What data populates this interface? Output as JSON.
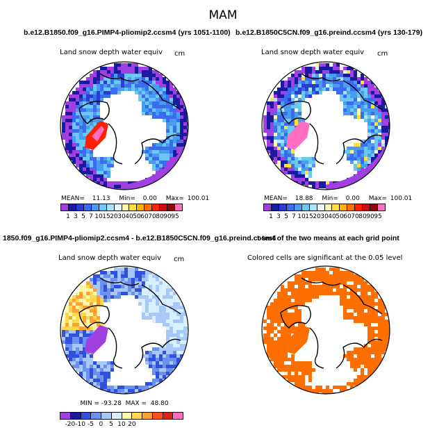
{
  "figure": {
    "title": "MAM"
  },
  "panels": [
    {
      "title": "b.e12.B1850.f09_g16.PIMP4-pliomip2.ccsm4 (yrs 1051-1100)",
      "variable": "Land snow depth water equiv",
      "units": "cm",
      "stats": {
        "mean_label": "MEAN=",
        "mean": "11.13",
        "min_label": "Min=",
        "min": "0.00",
        "max_label": "Max=",
        "max": "100.01"
      },
      "colorbar_ticks": [
        "1",
        "3",
        "5",
        "7",
        "10",
        "15",
        "20",
        "30",
        "40",
        "50",
        "60",
        "70",
        "80",
        "90",
        "95"
      ]
    },
    {
      "title": "b.e12.B1850C5CN.f09_g16.preind.ccsm4 (yrs 130-179)",
      "variable": "Land snow depth water equiv",
      "units": "cm",
      "stats": {
        "mean_label": "MEAN=",
        "mean": "18.88",
        "min_label": "Min=",
        "min": "0.00",
        "max_label": "Max=",
        "max": "100.01"
      },
      "colorbar_ticks": [
        "1",
        "3",
        "5",
        "7",
        "10",
        "15",
        "20",
        "30",
        "40",
        "50",
        "60",
        "70",
        "80",
        "90",
        "95"
      ]
    },
    {
      "title": "1850.f09_g16.PIMP4-pliomip2.ccsm4 - b.e12.B1850C5CN.f09_g16.preind.ccsm4",
      "variable": "Land snow depth water equiv",
      "units": "cm",
      "stats_text": "MIN = -93.28  MAX =  48.80",
      "colorbar_ticks": [
        "-20",
        "-10",
        "-5",
        "0",
        "5",
        "10",
        "20"
      ]
    },
    {
      "title": "t-test of the two means at each grid point",
      "variable": "Colored cells are significant at the 0.05 level"
    }
  ],
  "colors": {
    "abs_scale": [
      "#a040e0",
      "#1a1aa0",
      "#2a3cd6",
      "#3b6cf0",
      "#4a9cf0",
      "#6ac8f5",
      "#a8e4ff",
      "#e8fbff",
      "#fff9b0",
      "#ffe040",
      "#ffb000",
      "#ff7000",
      "#ff2000",
      "#c81010",
      "#8c0a0a",
      "#ff6ec0"
    ],
    "diff_scale": [
      "#a040e0",
      "#1a1aa0",
      "#3050e0",
      "#6a90f0",
      "#a8c8f8",
      "#d8f0ff",
      "#fff9b0",
      "#ffd850",
      "#ffa030",
      "#ff5020",
      "#e02020",
      "#ff6ec0"
    ],
    "ttest": "#ff6f00"
  },
  "chart_data": [
    {
      "type": "heatmap",
      "title": "b.e12.B1850.f09_g16.PIMP4-pliomip2.ccsm4 (yrs 1051-1100)",
      "variable": "Land snow depth water equiv",
      "units": "cm",
      "projection": "north polar stereographic",
      "mean": 11.13,
      "min": 0.0,
      "max": 100.01,
      "levels": [
        1,
        3,
        5,
        7,
        10,
        15,
        20,
        30,
        40,
        50,
        60,
        70,
        80,
        90,
        95
      ]
    },
    {
      "type": "heatmap",
      "title": "b.e12.B1850C5CN.f09_g16.preind.ccsm4 (yrs 130-179)",
      "variable": "Land snow depth water equiv",
      "units": "cm",
      "projection": "north polar stereographic",
      "mean": 18.88,
      "min": 0.0,
      "max": 100.01,
      "levels": [
        1,
        3,
        5,
        7,
        10,
        15,
        20,
        30,
        40,
        50,
        60,
        70,
        80,
        90,
        95
      ]
    },
    {
      "type": "heatmap",
      "title": "1850.f09_g16.PIMP4-pliomip2.ccsm4 - b.e12.B1850C5CN.f09_g16.preind.ccsm4",
      "variable": "Land snow depth water equiv",
      "units": "cm",
      "projection": "north polar stereographic",
      "min": -93.28,
      "max": 48.8,
      "levels": [
        -20,
        -10,
        -5,
        0,
        5,
        10,
        20
      ]
    },
    {
      "type": "heatmap",
      "title": "t-test of the two means at each grid point",
      "subtitle": "Colored cells are significant at the 0.05 level",
      "projection": "north polar stereographic",
      "significance_level": 0.05
    }
  ]
}
